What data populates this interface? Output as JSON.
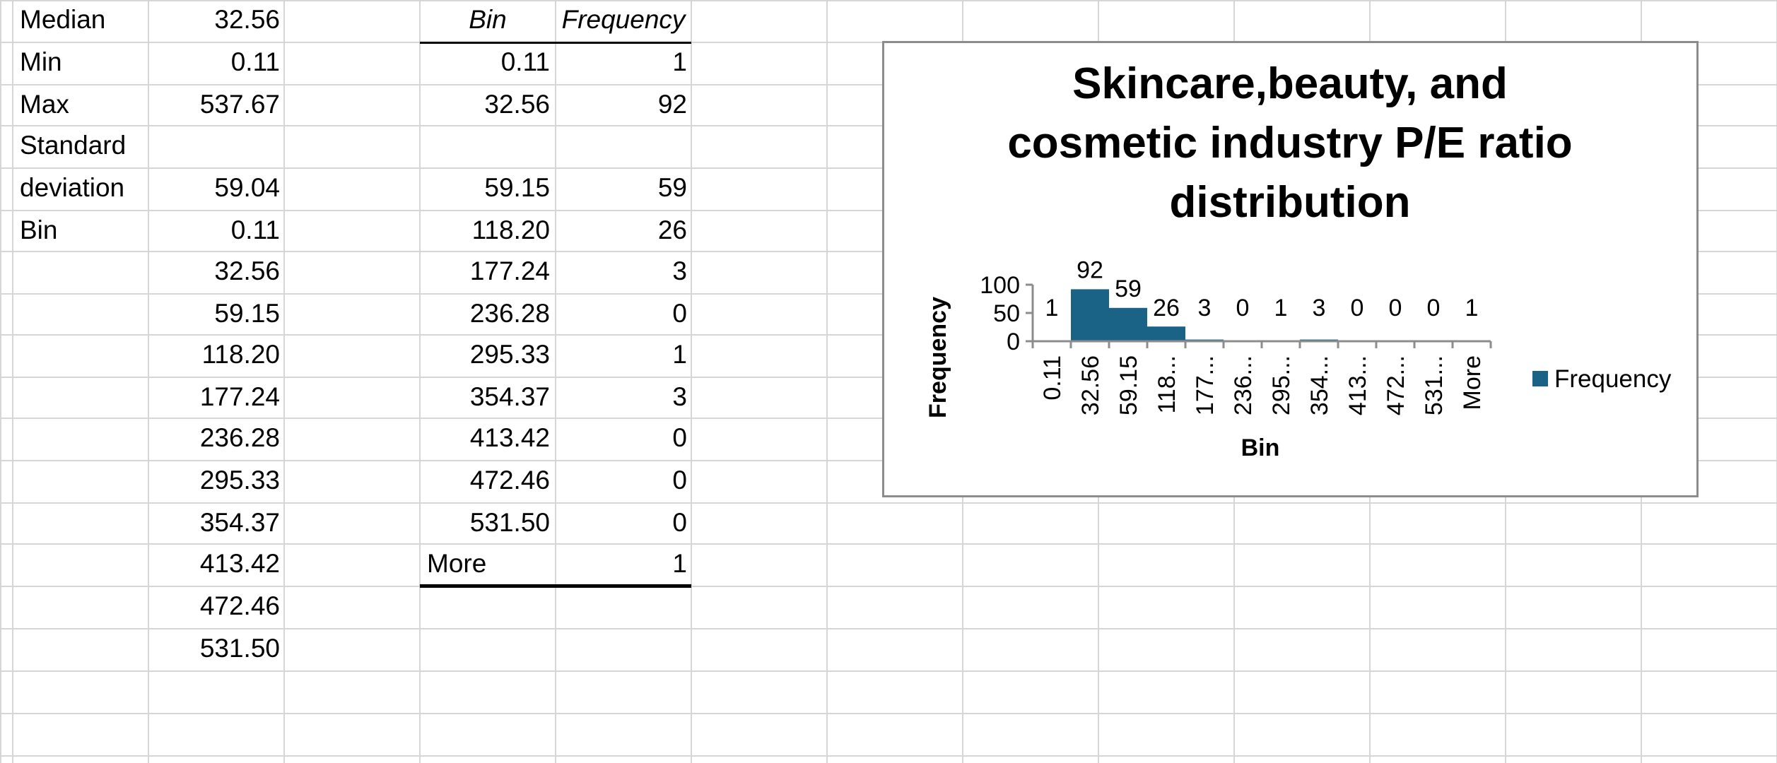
{
  "stats": [
    {
      "label": "Median",
      "value": "32.56"
    },
    {
      "label": "Min",
      "value": "0.11"
    },
    {
      "label": "Max",
      "value": "537.67"
    },
    {
      "label": "Standard",
      "value": ""
    },
    {
      "label": "deviation",
      "value": "59.04"
    },
    {
      "label": "Bin",
      "value": "0.11"
    }
  ],
  "bin_column": [
    "32.56",
    "59.15",
    "118.20",
    "177.24",
    "236.28",
    "295.33",
    "354.37",
    "413.42",
    "472.46",
    "531.50"
  ],
  "freq_table": {
    "header_bin": "Bin",
    "header_freq": "Frequency",
    "rows": [
      {
        "bin": "0.11",
        "freq": "1"
      },
      {
        "bin": "32.56",
        "freq": "92"
      },
      {
        "bin": "",
        "freq": ""
      },
      {
        "bin": "59.15",
        "freq": "59"
      },
      {
        "bin": "118.20",
        "freq": "26"
      },
      {
        "bin": "177.24",
        "freq": "3"
      },
      {
        "bin": "236.28",
        "freq": "0"
      },
      {
        "bin": "295.33",
        "freq": "1"
      },
      {
        "bin": "354.37",
        "freq": "3"
      },
      {
        "bin": "413.42",
        "freq": "0"
      },
      {
        "bin": "472.46",
        "freq": "0"
      },
      {
        "bin": "531.50",
        "freq": "0"
      },
      {
        "bin": "More",
        "freq": "1"
      }
    ]
  },
  "chart_data": {
    "type": "bar",
    "title_lines": [
      "Skincare,beauty, and",
      "cosmetic industry P/E ratio",
      "distribution"
    ],
    "xlabel": "Bin",
    "ylabel": "Frequency",
    "categories": [
      "0.11",
      "32.56",
      "59.15",
      "118...",
      "177...",
      "236...",
      "295...",
      "354...",
      "413...",
      "472...",
      "531...",
      "More"
    ],
    "series": [
      {
        "name": "Frequency",
        "values": [
          1,
          92,
          59,
          26,
          3,
          0,
          1,
          3,
          0,
          0,
          0,
          1
        ]
      }
    ],
    "yticks": [
      "0",
      "50",
      "100"
    ],
    "ylim": [
      0,
      100
    ],
    "legend_position": "right",
    "bar_color": "#1a6386"
  }
}
